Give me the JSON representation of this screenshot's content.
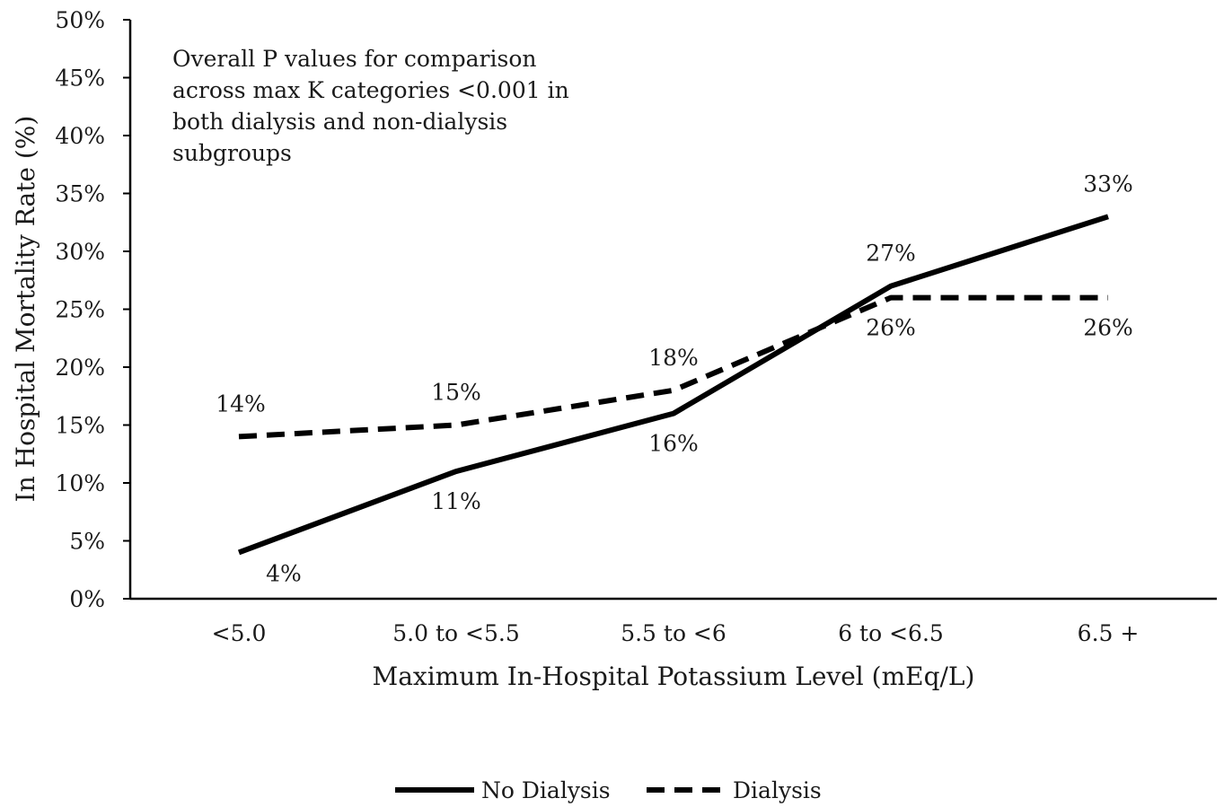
{
  "chart_data": {
    "type": "line",
    "categories": [
      "<5.0",
      "5.0 to <5.5",
      "5.5 to <6",
      "6 to <6.5",
      "6.5 +"
    ],
    "xlabel": "Maximum In-Hospital Potassium Level (mEq/L)",
    "ylabel": "In Hospital Mortality Rate (%)",
    "ylim": [
      0,
      50
    ],
    "yticks": [
      0,
      5,
      10,
      15,
      20,
      25,
      30,
      35,
      40,
      45,
      50
    ],
    "ytick_labels": [
      "0%",
      "5%",
      "10%",
      "15%",
      "20%",
      "25%",
      "30%",
      "35%",
      "40%",
      "45%",
      "50%"
    ],
    "grid": false,
    "legend_position": "bottom",
    "annotation": [
      "Overall P values for comparison",
      "across max K categories <0.001 in",
      "both dialysis and non-dialysis",
      "subgroups"
    ],
    "series": [
      {
        "name": "No Dialysis",
        "style": "solid",
        "color": "#000000",
        "values": [
          4,
          11,
          16,
          27,
          33
        ],
        "labels": [
          "4%",
          "11%",
          "16%",
          "27%",
          "33%"
        ]
      },
      {
        "name": "Dialysis",
        "style": "dashed",
        "color": "#000000",
        "values": [
          14,
          15,
          18,
          26,
          26
        ],
        "labels": [
          "14%",
          "15%",
          "18%",
          "26%",
          "26%"
        ]
      }
    ]
  }
}
